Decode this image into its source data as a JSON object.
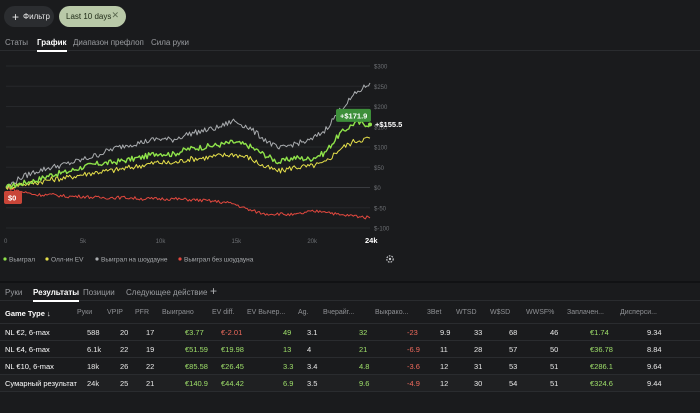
{
  "filters": {
    "add_label": "Фильтр",
    "active_chip": "Last 10 days"
  },
  "top_tabs": [
    "Статы",
    "График",
    "Диапазон префлоп",
    "Сила руки"
  ],
  "top_tabs_active": 1,
  "chart_data": {
    "type": "line",
    "x_ticks": [
      "0",
      "5k",
      "10k",
      "15k",
      "20k",
      "24k"
    ],
    "y_ticks": [
      "$300",
      "$250",
      "$200",
      "$150",
      "$100",
      "$50",
      "$0",
      "$-50",
      "$-100"
    ],
    "ylim": [
      -100,
      300
    ],
    "xlim": [
      0,
      24000
    ],
    "series": [
      {
        "name": "Выиграл",
        "color": "#8fe34a",
        "x": [
          0,
          1000,
          2000,
          3000,
          4000,
          5000,
          6000,
          7000,
          8000,
          9000,
          10000,
          11000,
          12000,
          13000,
          14000,
          15000,
          16000,
          17000,
          18000,
          19000,
          20000,
          21000,
          22000,
          23000,
          24000
        ],
        "y": [
          0,
          10,
          18,
          32,
          38,
          50,
          58,
          62,
          68,
          75,
          85,
          82,
          95,
          100,
          105,
          112,
          103,
          82,
          62,
          74,
          70,
          85,
          132,
          160,
          155.5
        ]
      },
      {
        "name": "Олл-ин EV",
        "color": "#e6e04a",
        "x": [
          0,
          1000,
          2000,
          3000,
          4000,
          5000,
          6000,
          7000,
          8000,
          9000,
          10000,
          11000,
          12000,
          13000,
          14000,
          15000,
          16000,
          17000,
          18000,
          19000,
          20000,
          21000,
          22000,
          23000,
          24000
        ],
        "y": [
          0,
          8,
          12,
          20,
          24,
          32,
          38,
          42,
          48,
          55,
          62,
          60,
          70,
          73,
          78,
          82,
          74,
          52,
          40,
          50,
          52,
          60,
          95,
          115,
          122
        ]
      },
      {
        "name": "Выиграл на шоудауне",
        "color": "#a9acaf",
        "x": [
          0,
          1000,
          2000,
          3000,
          4000,
          5000,
          6000,
          7000,
          8000,
          9000,
          10000,
          11000,
          12000,
          13000,
          14000,
          15000,
          16000,
          17000,
          18000,
          19000,
          20000,
          21000,
          22000,
          23000,
          24000
        ],
        "y": [
          0,
          25,
          40,
          50,
          58,
          68,
          80,
          95,
          105,
          112,
          120,
          118,
          132,
          140,
          148,
          165,
          148,
          120,
          95,
          108,
          115,
          140,
          190,
          230,
          258
        ]
      },
      {
        "name": "Выиграл без шоудауна",
        "color": "#e2483e",
        "x": [
          0,
          1000,
          2000,
          3000,
          4000,
          5000,
          6000,
          7000,
          8000,
          9000,
          10000,
          11000,
          12000,
          13000,
          14000,
          15000,
          16000,
          17000,
          18000,
          19000,
          20000,
          21000,
          22000,
          23000,
          24000
        ],
        "y": [
          0,
          -10,
          -18,
          -18,
          -22,
          -22,
          -25,
          -25,
          -25,
          -28,
          -28,
          -28,
          -30,
          -32,
          -35,
          -40,
          -55,
          -65,
          -65,
          -68,
          -60,
          -58,
          -68,
          -70,
          -75
        ]
      }
    ],
    "annotations": [
      {
        "label": "+$171.9",
        "x": 22800,
        "y": 171.9,
        "bg": "#3d8f3a",
        "color": "#ffffff"
      },
      {
        "label": "+$155.5",
        "x": 24000,
        "y": 155.5,
        "bg": "none",
        "color": "#ffffff"
      },
      {
        "label": "$0",
        "x": 0,
        "y": 0,
        "bg": "#c94538",
        "color": "#ffffff"
      }
    ],
    "legend": [
      "Выиграл",
      "Олл-ин EV",
      "Выиграл на шоудауне",
      "Выиграл без шоудауна"
    ],
    "legend_placement": "bottom-left",
    "grid": true
  },
  "bottom_tabs": [
    "Руки",
    "Результаты",
    "Позиции",
    "Следующее действие"
  ],
  "bottom_tabs_active": 1,
  "table": {
    "headers": [
      "Game Type ↓",
      "Руки",
      "VPIP",
      "PFR",
      "Выиграно",
      "EV diff.",
      "EV Вычер...",
      "Ag.",
      "Вчерайг...",
      "Выкрако...",
      "3Bet",
      "WTSD",
      "W$SD",
      "WWSF%",
      "Заплачен...",
      "Дисперси..."
    ],
    "rows": [
      [
        "NL €2, 6-max",
        "588",
        "20",
        "17",
        "€3.77",
        "€-2.01",
        "49",
        "3.1",
        "32",
        "-23",
        "9.9",
        "33",
        "68",
        "46",
        "€1.74",
        "9.34"
      ],
      [
        "NL €4, 6-max",
        "6.1k",
        "22",
        "19",
        "€51.59",
        "€19.98",
        "13",
        "4",
        "21",
        "-6.9",
        "11",
        "28",
        "57",
        "50",
        "€36.78",
        "8.84"
      ],
      [
        "NL €10, 6-max",
        "18k",
        "26",
        "22",
        "€85.58",
        "€26.45",
        "3.3",
        "3.4",
        "4.8",
        "-3.6",
        "12",
        "31",
        "53",
        "51",
        "€286.1",
        "9.64"
      ]
    ],
    "total": [
      "Сумарный результат",
      "24k",
      "25",
      "21",
      "€140.9",
      "€44.42",
      "6.9",
      "3.5",
      "9.6",
      "-4.9",
      "12",
      "30",
      "54",
      "51",
      "€324.6",
      "9.44"
    ]
  }
}
